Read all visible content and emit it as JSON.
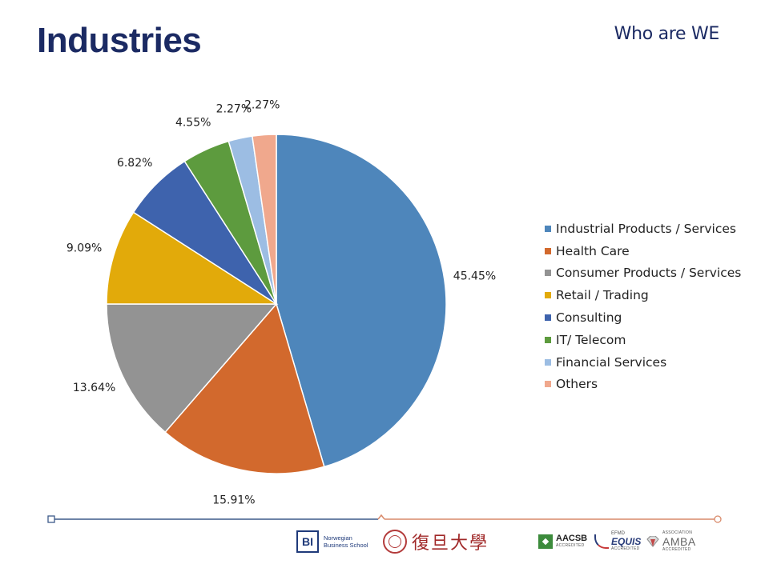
{
  "page": {
    "title": "Industries",
    "section_tag": "Who are WE"
  },
  "chart_data": {
    "type": "pie",
    "title": "",
    "start_angle_deg": 0,
    "direction": "clockwise",
    "slices": [
      {
        "label": "Industrial Products / Services",
        "value": 45.45,
        "display": "45.45%",
        "color": "#4e86bb"
      },
      {
        "label": "Health Care",
        "value": 15.91,
        "display": "15.91%",
        "color": "#d2692d"
      },
      {
        "label": "Consumer Products / Services",
        "value": 13.64,
        "display": "13.64%",
        "color": "#939393"
      },
      {
        "label": "Retail / Trading",
        "value": 9.09,
        "display": "9.09%",
        "color": "#e2aa0a"
      },
      {
        "label": "Consulting",
        "value": 6.82,
        "display": "6.82%",
        "color": "#3e63ad"
      },
      {
        "label": "IT/ Telecom",
        "value": 4.55,
        "display": "4.55%",
        "color": "#5d9b3e"
      },
      {
        "label": "Financial Services",
        "value": 2.27,
        "display": "2.27%",
        "color": "#9cbde3"
      },
      {
        "label": "Others",
        "value": 2.27,
        "display": "2.27%",
        "color": "#f0a88d"
      }
    ],
    "legend_position": "right"
  },
  "footer": {
    "logos": {
      "bi": {
        "mark": "BI",
        "line1": "Norwegian",
        "line2": "Business School"
      },
      "fudan": {
        "text": "復旦大學"
      },
      "aacsb": {
        "name": "AACSB",
        "sub": "ACCREDITED"
      },
      "equis": {
        "top": "EFMD",
        "name": "EQUIS",
        "sub": "ACCREDITED"
      },
      "amba": {
        "top": "ASSOCIATION",
        "name": "AMBA",
        "sub": "ACCREDITED"
      }
    },
    "colors": {
      "left_rule": "#3d5a8a",
      "right_rule": "#d98a6a"
    }
  }
}
